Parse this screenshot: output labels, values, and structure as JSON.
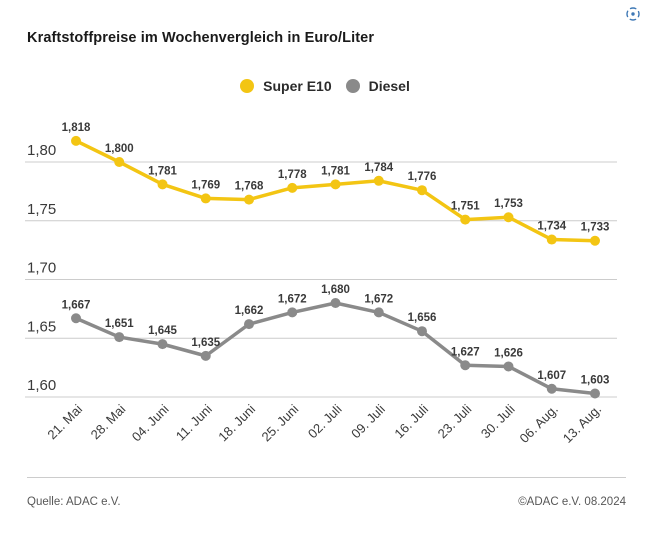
{
  "header": {
    "title": "Kraftstoffpreise im Wochenvergleich in Euro/Liter"
  },
  "controls": {
    "expand_icon": "focus-expand-icon",
    "expand_icon_color": "#3e78b5"
  },
  "legend": {
    "items": [
      {
        "label": "Super E10",
        "color": "#F3C513"
      },
      {
        "label": "Diesel",
        "color": "#8A8A8A"
      }
    ]
  },
  "chart_data": {
    "type": "line",
    "title": "Kraftstoffpreise im Wochenvergleich in Euro/Liter",
    "xlabel": "",
    "ylabel": "Euro/Liter",
    "grid": true,
    "legend_position": "top-center",
    "ylim": [
      1.58,
      1.83
    ],
    "categories": [
      "21. Mai",
      "28. Mai",
      "04. Juni",
      "11. Juni",
      "18. Juni",
      "25. Juni",
      "02. Juli",
      "09. Juli",
      "16. Juli",
      "23. Juli",
      "30. Juli",
      "06. Aug.",
      "13. Aug."
    ],
    "y_ticks": [
      {
        "value": 1.8,
        "label": "1,80"
      },
      {
        "value": 1.75,
        "label": "1,75"
      },
      {
        "value": 1.7,
        "label": "1,70"
      },
      {
        "value": 1.65,
        "label": "1,65"
      },
      {
        "value": 1.6,
        "label": "1,60"
      }
    ],
    "series": [
      {
        "name": "Super E10",
        "color": "#F3C513",
        "values": [
          1.818,
          1.8,
          1.781,
          1.769,
          1.768,
          1.778,
          1.781,
          1.784,
          1.776,
          1.751,
          1.753,
          1.734,
          1.733
        ],
        "labels": [
          "1,818",
          "1,800",
          "1,781",
          "1,769",
          "1,768",
          "1,778",
          "1,781",
          "1,784",
          "1,776",
          "1,751",
          "1,753",
          "1,734",
          "1,733"
        ]
      },
      {
        "name": "Diesel",
        "color": "#8A8A8A",
        "values": [
          1.667,
          1.651,
          1.645,
          1.635,
          1.662,
          1.672,
          1.68,
          1.672,
          1.656,
          1.627,
          1.626,
          1.607,
          1.603
        ],
        "labels": [
          "1,667",
          "1,651",
          "1,645",
          "1,635",
          "1,662",
          "1,672",
          "1,680",
          "1,672",
          "1,656",
          "1,627",
          "1,626",
          "1,607",
          "1,603"
        ]
      }
    ]
  },
  "footer": {
    "source": "Quelle: ADAC e.V.",
    "copyright": "©ADAC e.V. 08.2024"
  }
}
